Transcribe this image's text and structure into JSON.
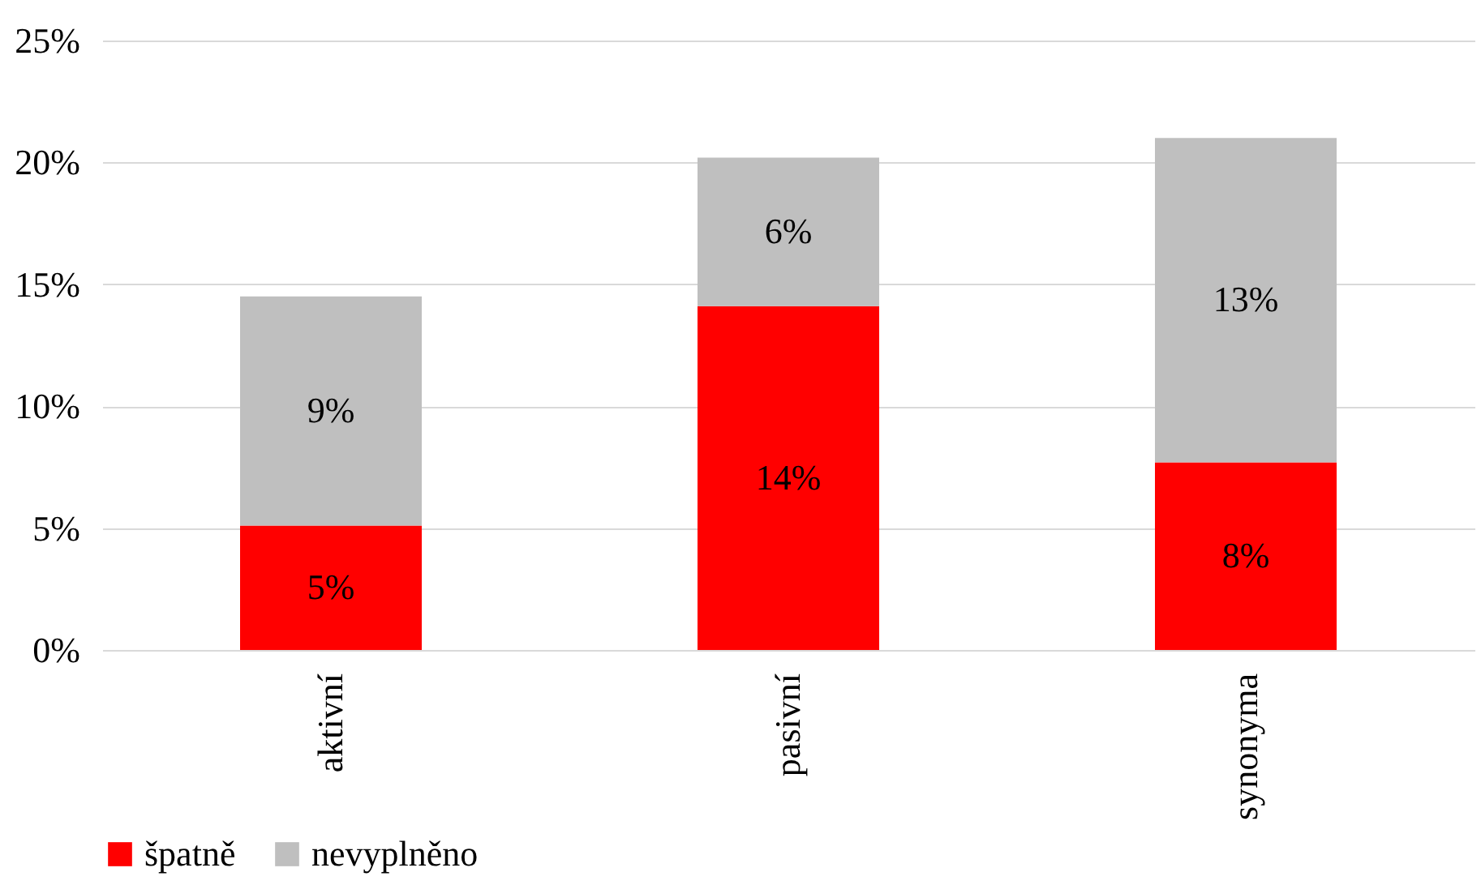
{
  "chart_data": {
    "type": "bar",
    "stacked": true,
    "categories": [
      "aktivní",
      "pasivní",
      "synonyma"
    ],
    "series": [
      {
        "name": "špatně",
        "color": "#ff0000",
        "values": [
          5.1,
          14.1,
          7.7
        ],
        "value_labels": [
          "5%",
          "14%",
          "8%"
        ]
      },
      {
        "name": "nevyplněno",
        "color": "#bfbfbf",
        "values": [
          9.4,
          6.1,
          13.3
        ],
        "value_labels": [
          "9%",
          "6%",
          "13%"
        ]
      }
    ],
    "ylim": [
      0,
      25
    ],
    "yticks": [
      {
        "value": 0,
        "label": "0%"
      },
      {
        "value": 5,
        "label": "5%"
      },
      {
        "value": 10,
        "label": "10%"
      },
      {
        "value": 15,
        "label": "15%"
      },
      {
        "value": 20,
        "label": "20%"
      },
      {
        "value": 25,
        "label": "25%"
      }
    ],
    "grid": "y",
    "legend": "bottom"
  }
}
